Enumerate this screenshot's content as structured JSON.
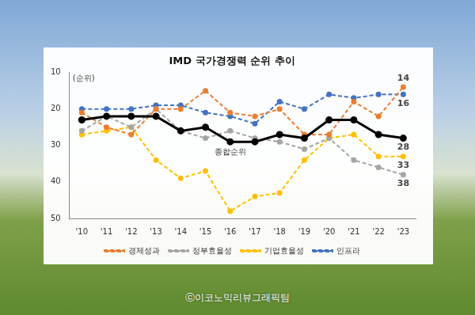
{
  "chart_data": {
    "type": "line",
    "title": "IMD 국가경쟁력 순위 추이",
    "y_label": "(순위)",
    "categories": [
      "'10",
      "'11",
      "'12",
      "'13",
      "'14",
      "'15",
      "'16",
      "'17",
      "'18",
      "'19",
      "'20",
      "'21",
      "'22",
      "'23"
    ],
    "ylim": [
      10,
      50
    ],
    "yticks": [
      10,
      20,
      30,
      40,
      50
    ],
    "reverse_y": true,
    "grid": false,
    "legend": "bottom",
    "series": [
      {
        "color": "#000000",
        "line_style": "solid",
        "marker": "circle",
        "values": [
          23,
          22,
          22,
          22,
          26,
          25,
          29,
          29,
          27,
          28,
          23,
          23,
          27,
          28
        ],
        "value_labels": [
          null,
          null,
          null,
          null,
          null,
          null,
          null,
          null,
          null,
          null,
          null,
          null,
          null,
          "28"
        ]
      },
      {
        "name": "경제성과",
        "color": "#ed7d31",
        "line_style": "dashed",
        "marker": "circle",
        "values": [
          21,
          25,
          27,
          20,
          20,
          15,
          21,
          22,
          20,
          27,
          27,
          18,
          22,
          14
        ],
        "value_labels": [
          null,
          null,
          null,
          null,
          null,
          null,
          null,
          null,
          null,
          null,
          null,
          null,
          null,
          "14"
        ]
      },
      {
        "name": "정부효율성",
        "color": "#a5a5a5",
        "line_style": "dashed",
        "marker": "circle",
        "values": [
          26,
          22,
          25,
          20,
          26,
          28,
          26,
          28,
          29,
          31,
          28,
          34,
          36,
          38
        ],
        "value_labels": [
          null,
          null,
          null,
          null,
          null,
          null,
          null,
          null,
          null,
          null,
          null,
          null,
          null,
          "38"
        ]
      },
      {
        "name": "기업효율성",
        "color": "#ffc000",
        "line_style": "dashed",
        "marker": "circle",
        "values": [
          27,
          26,
          25,
          34,
          39,
          37,
          48,
          44,
          43,
          34,
          28,
          27,
          33,
          33
        ],
        "value_labels": [
          null,
          null,
          null,
          null,
          null,
          null,
          null,
          null,
          null,
          null,
          null,
          null,
          null,
          "33"
        ]
      },
      {
        "name": "인프라",
        "color": "#4472c4",
        "line_style": "dashed",
        "marker": "circle",
        "values": [
          20,
          20,
          20,
          19,
          19,
          21,
          22,
          24,
          18,
          20,
          16,
          17,
          16,
          16
        ],
        "value_labels": [
          null,
          null,
          null,
          null,
          null,
          null,
          null,
          null,
          null,
          null,
          null,
          null,
          null,
          "16"
        ]
      }
    ],
    "annotations": [
      {
        "text": "종합순위"
      }
    ],
    "watermark": "ⓒ이코노믹리뷰그래픽팀"
  }
}
